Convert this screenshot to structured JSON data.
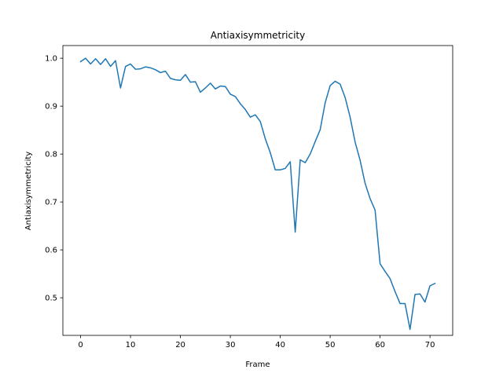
{
  "chart_data": {
    "type": "line",
    "title": "Antiaxisymmetricity",
    "xlabel": "Frame",
    "ylabel": "Antiaxisymmetricity",
    "xlim": [
      -3.55,
      74.55
    ],
    "ylim": [
      0.4215,
      1.0265
    ],
    "xticks": [
      0,
      10,
      20,
      30,
      40,
      50,
      60,
      70
    ],
    "yticks": [
      0.5,
      0.6,
      0.7,
      0.8,
      0.9,
      1.0
    ],
    "xtick_labels": [
      "0",
      "10",
      "20",
      "30",
      "40",
      "50",
      "60",
      "70"
    ],
    "ytick_labels": [
      "0.5",
      "0.6",
      "0.7",
      "0.8",
      "0.9",
      "1.0"
    ],
    "grid": false,
    "line_color": "#1f77b4",
    "series": [
      {
        "x": [
          0,
          1,
          2,
          3,
          4,
          5,
          6,
          7,
          8,
          9,
          10,
          11,
          12,
          13,
          14,
          15,
          16,
          17,
          18,
          19,
          20,
          21,
          22,
          23,
          24,
          25,
          26,
          27,
          28,
          29,
          30,
          31,
          32,
          33,
          34,
          35,
          36,
          37,
          38,
          39,
          40,
          41,
          42,
          43,
          44,
          45,
          46,
          47,
          48,
          49,
          50,
          51,
          52,
          53,
          54,
          55,
          56,
          57,
          58,
          59,
          60,
          61,
          62,
          63,
          64,
          65,
          66,
          67,
          68,
          69,
          70,
          71
        ],
        "values": [
          0.993,
          1.0,
          0.988,
          0.999,
          0.987,
          0.999,
          0.983,
          0.995,
          0.938,
          0.983,
          0.988,
          0.977,
          0.978,
          0.982,
          0.98,
          0.976,
          0.97,
          0.973,
          0.958,
          0.955,
          0.954,
          0.966,
          0.95,
          0.951,
          0.929,
          0.938,
          0.948,
          0.936,
          0.942,
          0.941,
          0.925,
          0.92,
          0.905,
          0.893,
          0.877,
          0.882,
          0.868,
          0.832,
          0.803,
          0.767,
          0.767,
          0.77,
          0.784,
          0.637,
          0.788,
          0.782,
          0.8,
          0.826,
          0.851,
          0.907,
          0.943,
          0.952,
          0.946,
          0.918,
          0.877,
          0.825,
          0.787,
          0.739,
          0.707,
          0.683,
          0.571,
          0.555,
          0.54,
          0.513,
          0.488,
          0.488,
          0.434,
          0.507,
          0.508,
          0.491,
          0.525,
          0.53
        ]
      }
    ]
  }
}
